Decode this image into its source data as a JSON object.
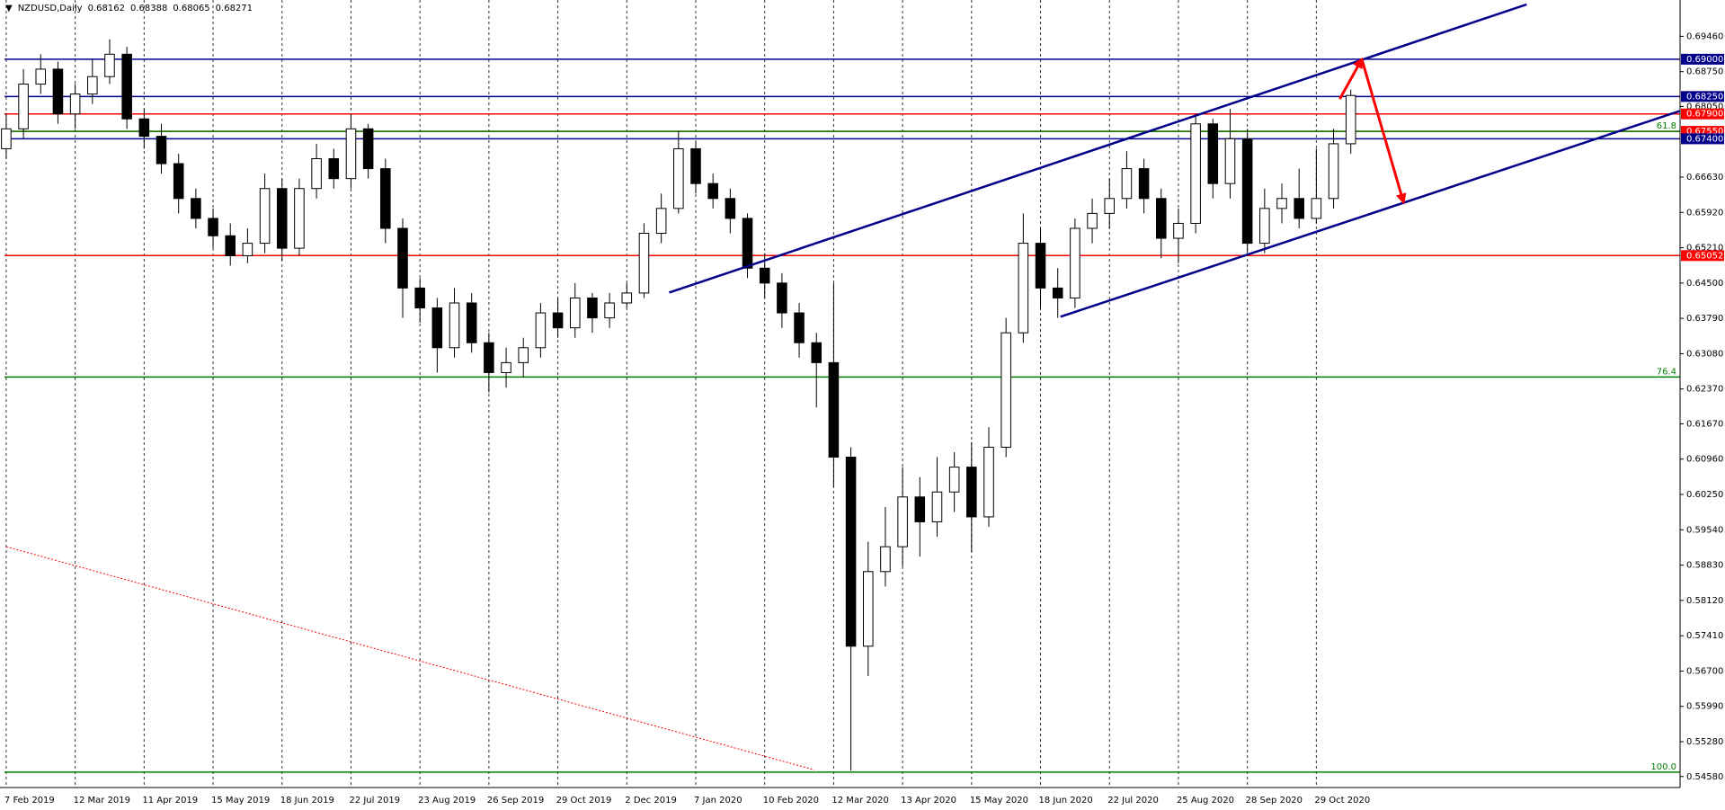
{
  "chart_data": {
    "type": "candlestick",
    "title": "NZDUSD,Daily",
    "quote": [
      0.68162,
      0.68388,
      0.68065,
      0.68271
    ],
    "categories": [
      "7 Feb 2019",
      null,
      null,
      null,
      "12 Mar 2019",
      null,
      null,
      null,
      "11 Apr 2019",
      null,
      null,
      null,
      "15 May 2019",
      null,
      null,
      null,
      "18 Jun 2019",
      null,
      null,
      null,
      "22 Jul 2019",
      null,
      null,
      null,
      "23 Aug 2019",
      null,
      null,
      null,
      "26 Sep 2019",
      null,
      null,
      null,
      "29 Oct 2019",
      null,
      null,
      null,
      "2 Dec 2019",
      null,
      null,
      null,
      "7 Jan 2020",
      null,
      null,
      null,
      "10 Feb 2020",
      null,
      null,
      null,
      "12 Mar 2020",
      null,
      null,
      null,
      "13 Apr 2020",
      null,
      null,
      null,
      "15 May 2020",
      null,
      null,
      null,
      "18 Jun 2020",
      null,
      null,
      null,
      "22 Jul 2020",
      null,
      null,
      null,
      "25 Aug 2020",
      null,
      null,
      null,
      "28 Sep 2020",
      null,
      null,
      null,
      "29 Oct 2020",
      null,
      null
    ],
    "open": [
      0.672,
      0.676,
      0.685,
      0.688,
      0.679,
      0.683,
      0.6865,
      0.691,
      0.678,
      0.6745,
      0.669,
      0.662,
      0.658,
      0.6545,
      0.6505,
      0.653,
      0.664,
      0.652,
      0.664,
      0.67,
      0.666,
      0.676,
      0.668,
      0.656,
      0.644,
      0.64,
      0.632,
      0.641,
      0.633,
      0.627,
      0.629,
      0.632,
      0.639,
      0.636,
      0.642,
      0.638,
      0.641,
      0.643,
      0.655,
      0.66,
      0.672,
      0.665,
      0.662,
      0.658,
      0.648,
      0.645,
      0.639,
      0.633,
      0.629,
      0.61,
      0.572,
      0.587,
      0.592,
      0.602,
      0.597,
      0.603,
      0.608,
      0.598,
      0.612,
      0.635,
      0.653,
      0.644,
      0.642,
      0.656,
      0.659,
      0.662,
      0.668,
      0.662,
      0.654,
      0.657,
      0.677,
      0.665,
      0.674,
      0.653,
      0.66,
      0.662,
      0.658,
      0.662,
      0.673
    ],
    "high": [
      0.679,
      0.688,
      0.691,
      0.6895,
      0.685,
      0.69,
      0.694,
      0.6925,
      0.68,
      0.677,
      0.671,
      0.664,
      0.66,
      0.657,
      0.656,
      0.667,
      0.666,
      0.666,
      0.673,
      0.672,
      0.679,
      0.677,
      0.67,
      0.658,
      0.646,
      0.642,
      0.644,
      0.643,
      0.635,
      0.632,
      0.634,
      0.641,
      0.642,
      0.645,
      0.643,
      0.643,
      0.645,
      0.657,
      0.663,
      0.6755,
      0.6735,
      0.667,
      0.664,
      0.659,
      0.651,
      0.647,
      0.641,
      0.635,
      0.645,
      0.612,
      0.593,
      0.6,
      0.608,
      0.606,
      0.61,
      0.611,
      0.613,
      0.616,
      0.638,
      0.659,
      0.656,
      0.648,
      0.658,
      0.662,
      0.666,
      0.6715,
      0.67,
      0.664,
      0.66,
      0.679,
      0.678,
      0.68,
      0.676,
      0.664,
      0.665,
      0.668,
      0.672,
      0.676,
      0.6839
    ],
    "low": [
      0.67,
      0.674,
      0.683,
      0.677,
      0.676,
      0.681,
      0.685,
      0.676,
      0.672,
      0.667,
      0.659,
      0.656,
      0.652,
      0.6485,
      0.649,
      0.651,
      0.6495,
      0.6505,
      0.662,
      0.664,
      0.664,
      0.666,
      0.653,
      0.638,
      0.637,
      0.627,
      0.63,
      0.631,
      0.623,
      0.624,
      0.626,
      0.63,
      0.634,
      0.634,
      0.635,
      0.636,
      0.64,
      0.642,
      0.653,
      0.659,
      0.663,
      0.66,
      0.655,
      0.646,
      0.642,
      0.636,
      0.63,
      0.62,
      0.604,
      0.547,
      0.566,
      0.584,
      0.588,
      0.59,
      0.594,
      0.599,
      0.591,
      0.596,
      0.61,
      0.633,
      0.64,
      0.638,
      0.64,
      0.653,
      0.656,
      0.66,
      0.659,
      0.65,
      0.649,
      0.655,
      0.662,
      0.662,
      0.651,
      0.651,
      0.657,
      0.656,
      0.657,
      0.66,
      0.671
    ],
    "close": [
      0.676,
      0.685,
      0.688,
      0.679,
      0.683,
      0.6865,
      0.691,
      0.678,
      0.6745,
      0.669,
      0.662,
      0.658,
      0.6545,
      0.6505,
      0.653,
      0.664,
      0.652,
      0.664,
      0.67,
      0.666,
      0.676,
      0.668,
      0.656,
      0.644,
      0.64,
      0.632,
      0.641,
      0.633,
      0.627,
      0.629,
      0.632,
      0.639,
      0.636,
      0.642,
      0.638,
      0.641,
      0.643,
      0.655,
      0.66,
      0.672,
      0.665,
      0.662,
      0.658,
      0.648,
      0.645,
      0.639,
      0.633,
      0.629,
      0.61,
      0.572,
      0.587,
      0.592,
      0.602,
      0.597,
      0.603,
      0.608,
      0.598,
      0.612,
      0.635,
      0.653,
      0.644,
      0.642,
      0.656,
      0.659,
      0.662,
      0.668,
      0.662,
      0.654,
      0.657,
      0.677,
      0.665,
      0.674,
      0.653,
      0.66,
      0.662,
      0.658,
      0.662,
      0.673,
      0.6827
    ],
    "up_color": "#ffffff",
    "down_color": "#000000",
    "edge_color": "#000000",
    "xlim": [
      -0.1,
      97.1
    ],
    "ylim": [
      0.54359,
      0.7019
    ],
    "yticks": [
      {
        "value": 0.6946,
        "label": "0.69460"
      },
      {
        "value": 0.6875,
        "label": "0.68750"
      },
      {
        "value": 0.6805,
        "label": "0.68050"
      },
      {
        "value": 0.6663,
        "label": "0.66630"
      },
      {
        "value": 0.6592,
        "label": "0.65920"
      },
      {
        "value": 0.6521,
        "label": "0.65210"
      },
      {
        "value": 0.645,
        "label": "0.64500"
      },
      {
        "value": 0.6379,
        "label": "0.63790"
      },
      {
        "value": 0.6308,
        "label": "0.63080"
      },
      {
        "value": 0.6237,
        "label": "0.62370"
      },
      {
        "value": 0.6167,
        "label": "0.61670"
      },
      {
        "value": 0.6096,
        "label": "0.60960"
      },
      {
        "value": 0.6025,
        "label": "0.60250"
      },
      {
        "value": 0.5954,
        "label": "0.59540"
      },
      {
        "value": 0.5883,
        "label": "0.58830"
      },
      {
        "value": 0.5812,
        "label": "0.58120"
      },
      {
        "value": 0.5741,
        "label": "0.57410"
      },
      {
        "value": 0.567,
        "label": "0.56700"
      },
      {
        "value": 0.5599,
        "label": "0.55990"
      },
      {
        "value": 0.5528,
        "label": "0.55280"
      },
      {
        "value": 0.5458,
        "label": "0.54580"
      }
    ],
    "price_levels": [
      {
        "value": 0.69,
        "label": "0.69000",
        "color": "#00008b"
      },
      {
        "value": 0.6825,
        "label": "0.68250",
        "color": "#00008b"
      },
      {
        "value": 0.679,
        "label": "0.67900",
        "color": "#ff0000"
      },
      {
        "value": 0.6755,
        "label": "0.67550",
        "color": "#ff0000"
      },
      {
        "value": 0.674,
        "label": "0.67400",
        "color": "#00008b"
      },
      {
        "value": 0.65052,
        "label": "0.65052",
        "color": "#ff0000"
      }
    ],
    "fib_levels": [
      {
        "value": 0.6755,
        "label": "61.8",
        "color": "#008000"
      },
      {
        "value": 0.6261,
        "label": "76.4",
        "color": "#008000"
      },
      {
        "value": 0.54668,
        "label": "100.0",
        "color": "#008000"
      }
    ],
    "drawings": [
      {
        "color": "#00008b",
        "width": 2.5,
        "arrow": false,
        "dash": false,
        "points": [
          [
            38.46,
            0.64309
          ],
          [
            88.2,
            0.70101
          ]
        ]
      },
      {
        "color": "#00008b",
        "width": 2.5,
        "arrow": false,
        "dash": false,
        "points": [
          [
            61.16,
            0.63822
          ],
          [
            97.07,
            0.67957
          ]
        ]
      },
      {
        "color": "#ff0000",
        "width": 3,
        "arrow": true,
        "dash": false,
        "points": [
          [
            77.36,
            0.682
          ],
          [
            78.64,
            0.69
          ]
        ]
      },
      {
        "color": "#ff0000",
        "width": 3,
        "arrow": true,
        "dash": false,
        "points": [
          [
            78.64,
            0.69
          ],
          [
            81.06,
            0.66122
          ]
        ]
      },
      {
        "color": "#ff0000",
        "width": 1,
        "arrow": false,
        "dash": true,
        "points": [
          [
            0,
            0.59201
          ],
          [
            46.88,
            0.54713
          ]
        ]
      }
    ],
    "grid": true
  }
}
